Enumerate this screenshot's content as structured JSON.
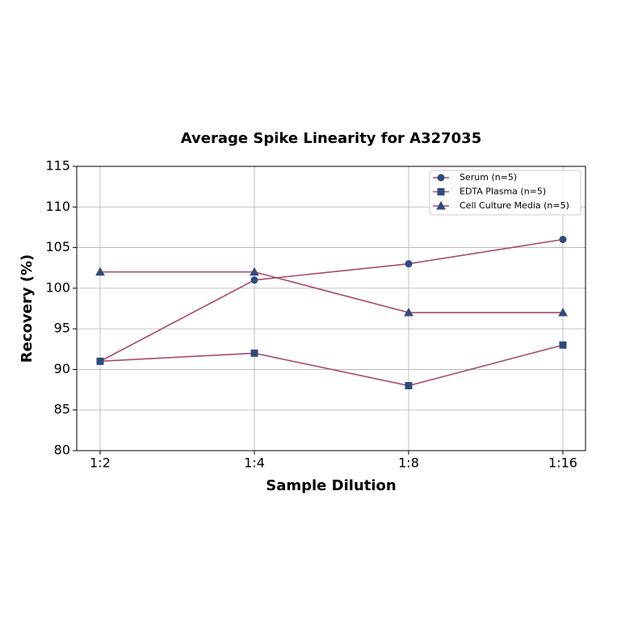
{
  "chart_data": {
    "type": "line",
    "title": "Average Spike Linearity for A327035",
    "x_label": "Sample Dilution",
    "y_label": "Recovery (%)",
    "categories": [
      "1:2",
      "1:4",
      "1:8",
      "1:16"
    ],
    "series": [
      {
        "name": "Serum (n=5)",
        "color": "#a94a6e",
        "marker_color": "#2f4b7c",
        "marker": "circle",
        "values": [
          91,
          101,
          103,
          106
        ]
      },
      {
        "name": "EDTA Plasma (n=5)",
        "color": "#a94a6e",
        "marker_color": "#2f4b7c",
        "marker": "square",
        "values": [
          91,
          92,
          88,
          93
        ]
      },
      {
        "name": "Cell Culture Media (n=5)",
        "color": "#a94a6e",
        "marker_color": "#2f4b7c",
        "marker": "triangle",
        "values": [
          102,
          102,
          97,
          97
        ]
      }
    ],
    "ylim": [
      80,
      115
    ],
    "yticks": [
      80,
      85,
      90,
      95,
      100,
      105,
      110,
      115
    ],
    "grid": true,
    "legend": "upper right"
  }
}
